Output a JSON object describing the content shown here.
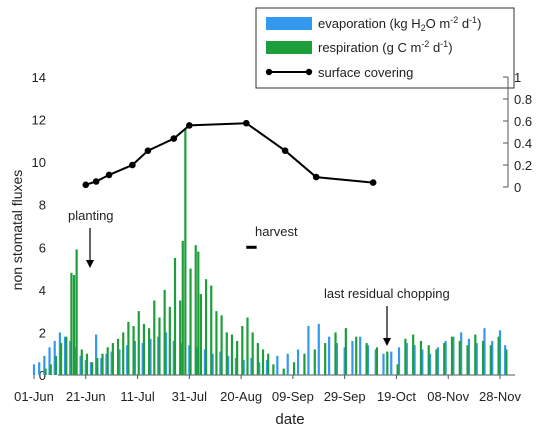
{
  "chart_data": {
    "type": "bar",
    "xlabel": "date",
    "ylabel": "non stomatal fluxes",
    "ylim": [
      0,
      14
    ],
    "ylim_right": [
      0,
      1
    ],
    "y_ticks": [
      "0",
      "2",
      "4",
      "6",
      "8",
      "10",
      "12",
      "14"
    ],
    "y_ticks_right": [
      "0",
      "0.2",
      "0.4",
      "0.6",
      "0.8",
      "1"
    ],
    "x_ticks": [
      "01-Jun",
      "21-Jun",
      "11-Jul",
      "31-Jul",
      "20-Aug",
      "09-Sep",
      "29-Sep",
      "19-Oct",
      "08-Nov",
      "28-Nov"
    ],
    "x_tick_dates": [
      "2000-06-01",
      "2000-06-21",
      "2000-07-11",
      "2000-07-31",
      "2000-08-20",
      "2000-09-09",
      "2000-09-29",
      "2000-10-19",
      "2000-11-08",
      "2000-11-28"
    ],
    "x_start": "2000-06-01",
    "grid": false,
    "legend_position": "top-right",
    "legend": [
      {
        "label_main": "evaporation (kg H",
        "sub": "2",
        "label_mid": "O m",
        "sup1": "-2",
        "label_mid2": " d",
        "sup2": "-1",
        "label_end": ")",
        "color": "#3399ee",
        "kind": "bar"
      },
      {
        "label_main": "respiration (g C m",
        "sub": "",
        "label_mid": "",
        "sup1": "-2",
        "label_mid2": " d",
        "sup2": "-1",
        "label_end": ")",
        "color": "#1e9e3a",
        "kind": "bar"
      },
      {
        "label_main": "surface covering",
        "sub": "",
        "label_mid": "",
        "sup1": "",
        "label_mid2": "",
        "sup2": "",
        "label_end": "",
        "color": "#000000",
        "kind": "line"
      }
    ],
    "series": [
      {
        "name": "evaporation (kg H2O m-2 d-1)",
        "color": "#3399ee",
        "x": [
          "2000-06-01",
          "2000-06-03",
          "2000-06-05",
          "2000-06-07",
          "2000-06-09",
          "2000-06-11",
          "2000-06-13",
          "2000-06-15",
          "2000-06-17",
          "2000-06-19",
          "2000-06-21",
          "2000-06-23",
          "2000-06-25",
          "2000-06-27",
          "2000-06-29",
          "2000-07-01",
          "2000-07-04",
          "2000-07-07",
          "2000-07-10",
          "2000-07-13",
          "2000-07-16",
          "2000-07-19",
          "2000-07-22",
          "2000-07-25",
          "2000-07-28",
          "2000-07-31",
          "2000-08-03",
          "2000-08-06",
          "2000-08-09",
          "2000-08-12",
          "2000-08-15",
          "2000-08-18",
          "2000-08-21",
          "2000-08-24",
          "2000-08-27",
          "2000-08-30",
          "2000-09-03",
          "2000-09-07",
          "2000-09-11",
          "2000-09-15",
          "2000-09-19",
          "2000-09-23",
          "2000-09-26",
          "2000-09-29",
          "2000-10-02",
          "2000-10-05",
          "2000-10-08",
          "2000-10-11",
          "2000-10-14",
          "2000-10-17",
          "2000-10-20",
          "2000-10-23",
          "2000-10-26",
          "2000-10-29",
          "2000-11-01",
          "2000-11-04",
          "2000-11-07",
          "2000-11-10",
          "2000-11-13",
          "2000-11-16",
          "2000-11-19",
          "2000-11-22",
          "2000-11-25",
          "2000-11-28",
          "2000-11-30"
        ],
        "values": [
          0.5,
          0.6,
          0.9,
          1.3,
          1.6,
          2.0,
          1.8,
          1.6,
          1.3,
          0.9,
          0.7,
          0.6,
          1.9,
          0.8,
          1.0,
          1.1,
          1.2,
          1.4,
          1.6,
          1.5,
          1.7,
          1.8,
          2.0,
          1.6,
          1.5,
          1.4,
          1.3,
          1.2,
          1.0,
          1.1,
          0.9,
          0.8,
          0.7,
          0.8,
          0.6,
          0.7,
          0.9,
          1.0,
          1.2,
          2.3,
          2.4,
          1.8,
          1.5,
          1.3,
          1.6,
          1.8,
          1.4,
          1.2,
          1.0,
          1.1,
          1.3,
          1.5,
          1.4,
          1.2,
          1.0,
          1.3,
          1.6,
          1.8,
          2.0,
          1.7,
          1.5,
          2.2,
          1.6,
          2.1,
          1.4
        ]
      },
      {
        "name": "respiration (g C m-2 d-1)",
        "color": "#1e9e3a",
        "x": [
          "2000-06-05",
          "2000-06-07",
          "2000-06-09",
          "2000-06-11",
          "2000-06-13",
          "2000-06-15",
          "2000-06-16",
          "2000-06-17",
          "2000-06-19",
          "2000-06-21",
          "2000-06-23",
          "2000-06-25",
          "2000-06-27",
          "2000-06-29",
          "2000-07-01",
          "2000-07-03",
          "2000-07-05",
          "2000-07-07",
          "2000-07-09",
          "2000-07-11",
          "2000-07-13",
          "2000-07-15",
          "2000-07-17",
          "2000-07-19",
          "2000-07-21",
          "2000-07-23",
          "2000-07-25",
          "2000-07-27",
          "2000-07-28",
          "2000-07-29",
          "2000-07-31",
          "2000-08-02",
          "2000-08-03",
          "2000-08-04",
          "2000-08-06",
          "2000-08-08",
          "2000-08-10",
          "2000-08-12",
          "2000-08-14",
          "2000-08-16",
          "2000-08-18",
          "2000-08-20",
          "2000-08-22",
          "2000-08-24",
          "2000-08-26",
          "2000-08-28",
          "2000-08-30",
          "2000-09-01",
          "2000-09-05",
          "2000-09-09",
          "2000-09-13",
          "2000-09-17",
          "2000-09-21",
          "2000-09-25",
          "2000-09-29",
          "2000-10-03",
          "2000-10-07",
          "2000-10-11",
          "2000-10-15",
          "2000-10-19",
          "2000-10-22",
          "2000-10-25",
          "2000-10-28",
          "2000-10-31",
          "2000-11-03",
          "2000-11-06",
          "2000-11-09",
          "2000-11-12",
          "2000-11-15",
          "2000-11-18",
          "2000-11-21",
          "2000-11-24",
          "2000-11-27",
          "2000-11-30"
        ],
        "values": [
          0.3,
          0.5,
          0.9,
          1.5,
          1.8,
          4.8,
          4.7,
          5.9,
          1.2,
          1.0,
          0.6,
          0.8,
          1.0,
          1.3,
          1.5,
          1.7,
          2.0,
          2.5,
          2.3,
          3.0,
          2.4,
          2.2,
          3.5,
          2.7,
          4.0,
          3.2,
          5.5,
          3.5,
          6.3,
          11.6,
          5.0,
          6.1,
          5.8,
          3.8,
          4.5,
          4.2,
          3.0,
          2.8,
          2.0,
          1.9,
          1.6,
          2.3,
          2.7,
          2.0,
          1.5,
          1.2,
          1.0,
          0.5,
          0.3,
          0.6,
          1.0,
          1.2,
          1.5,
          2.0,
          2.2,
          1.8,
          1.5,
          1.3,
          1.1,
          0.5,
          1.7,
          1.9,
          1.6,
          1.4,
          1.2,
          1.5,
          1.8,
          1.6,
          1.4,
          1.9,
          1.6,
          1.4,
          1.8,
          1.2
        ]
      },
      {
        "name": "surface covering",
        "color": "#000000",
        "axis": "right",
        "x": [
          "2000-06-21",
          "2000-06-25",
          "2000-06-30",
          "2000-07-09",
          "2000-07-15",
          "2000-07-25",
          "2000-07-31",
          "2000-08-22",
          "2000-09-06",
          "2000-09-18",
          "2000-10-10"
        ],
        "values": [
          0.02,
          0.05,
          0.11,
          0.2,
          0.33,
          0.44,
          0.56,
          0.58,
          0.33,
          0.09,
          0.04
        ]
      }
    ],
    "harvest_marker": {
      "x_start": "2000-08-22",
      "x_end": "2000-08-26",
      "y": 6.0
    }
  },
  "annotations": {
    "planting": "planting",
    "harvest": "harvest",
    "last_chopping": "last residual chopping"
  }
}
